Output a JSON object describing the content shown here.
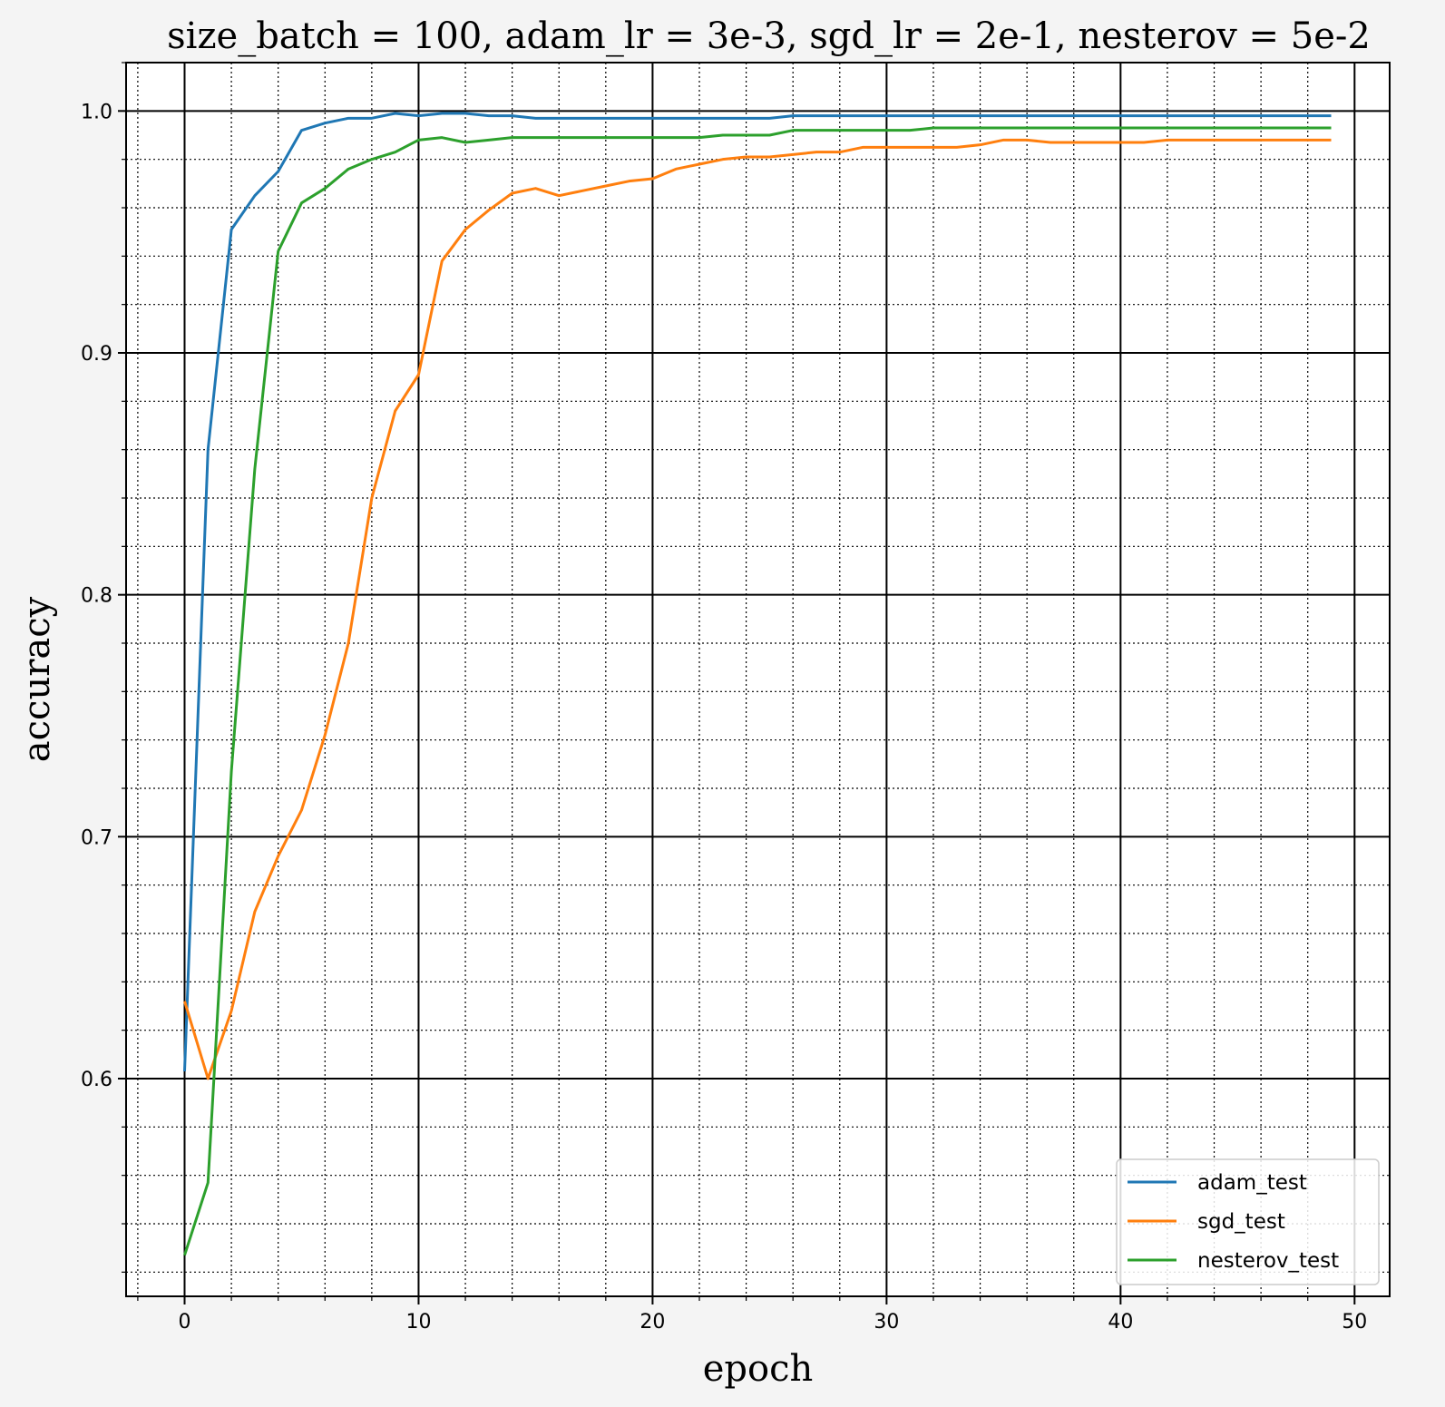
{
  "chart_data": {
    "type": "line",
    "title": "size_batch = 100, adam_lr = 3e-3, sgd_lr = 2e-1, nesterov = 5e-2",
    "xlabel": "epoch",
    "ylabel": "accuracy",
    "xlim": [
      -2.5,
      51.5
    ],
    "ylim": [
      0.51,
      1.02
    ],
    "xticks": [
      0,
      10,
      20,
      30,
      40,
      50
    ],
    "xtick_labels": [
      "0",
      "10",
      "20",
      "30",
      "40",
      "50"
    ],
    "yticks": [
      0.6,
      0.7,
      0.8,
      0.9,
      1.0
    ],
    "ytick_labels": [
      "0.6",
      "0.7",
      "0.8",
      "0.9",
      "1.0"
    ],
    "x_minor_step": 2,
    "y_minor_step": 0.02,
    "grid": "major solid, minor dotted",
    "legend_position": "lower right",
    "x": [
      0,
      1,
      2,
      3,
      4,
      5,
      6,
      7,
      8,
      9,
      10,
      11,
      12,
      13,
      14,
      15,
      16,
      17,
      18,
      19,
      20,
      21,
      22,
      23,
      24,
      25,
      26,
      27,
      28,
      29,
      30,
      31,
      32,
      33,
      34,
      35,
      36,
      37,
      38,
      39,
      40,
      41,
      42,
      43,
      44,
      45,
      46,
      47,
      48,
      49
    ],
    "series": [
      {
        "name": "adam_test",
        "color": "#1f77b4",
        "values": [
          0.603,
          0.86,
          0.951,
          0.965,
          0.975,
          0.992,
          0.995,
          0.997,
          0.997,
          0.999,
          0.998,
          0.999,
          0.999,
          0.998,
          0.998,
          0.997,
          0.997,
          0.997,
          0.997,
          0.997,
          0.997,
          0.997,
          0.997,
          0.997,
          0.997,
          0.997,
          0.998,
          0.998,
          0.998,
          0.998,
          0.998,
          0.998,
          0.998,
          0.998,
          0.998,
          0.998,
          0.998,
          0.998,
          0.998,
          0.998,
          0.998,
          0.998,
          0.998,
          0.998,
          0.998,
          0.998,
          0.998,
          0.998,
          0.998,
          0.998
        ]
      },
      {
        "name": "sgd_test",
        "color": "#ff7f0e",
        "values": [
          0.632,
          0.6,
          0.628,
          0.669,
          0.692,
          0.711,
          0.742,
          0.78,
          0.84,
          0.876,
          0.891,
          0.938,
          0.951,
          0.959,
          0.966,
          0.968,
          0.965,
          0.967,
          0.969,
          0.971,
          0.972,
          0.976,
          0.978,
          0.98,
          0.981,
          0.981,
          0.982,
          0.983,
          0.983,
          0.985,
          0.985,
          0.985,
          0.985,
          0.985,
          0.986,
          0.988,
          0.988,
          0.987,
          0.987,
          0.987,
          0.987,
          0.987,
          0.988,
          0.988,
          0.988,
          0.988,
          0.988,
          0.988,
          0.988,
          0.988
        ]
      },
      {
        "name": "nesterov_test",
        "color": "#2ca02c",
        "values": [
          0.527,
          0.557,
          0.727,
          0.852,
          0.942,
          0.962,
          0.968,
          0.976,
          0.98,
          0.983,
          0.988,
          0.989,
          0.987,
          0.988,
          0.989,
          0.989,
          0.989,
          0.989,
          0.989,
          0.989,
          0.989,
          0.989,
          0.989,
          0.99,
          0.99,
          0.99,
          0.992,
          0.992,
          0.992,
          0.992,
          0.992,
          0.992,
          0.993,
          0.993,
          0.993,
          0.993,
          0.993,
          0.993,
          0.993,
          0.993,
          0.993,
          0.993,
          0.993,
          0.993,
          0.993,
          0.993,
          0.993,
          0.993,
          0.993,
          0.993
        ]
      }
    ]
  }
}
